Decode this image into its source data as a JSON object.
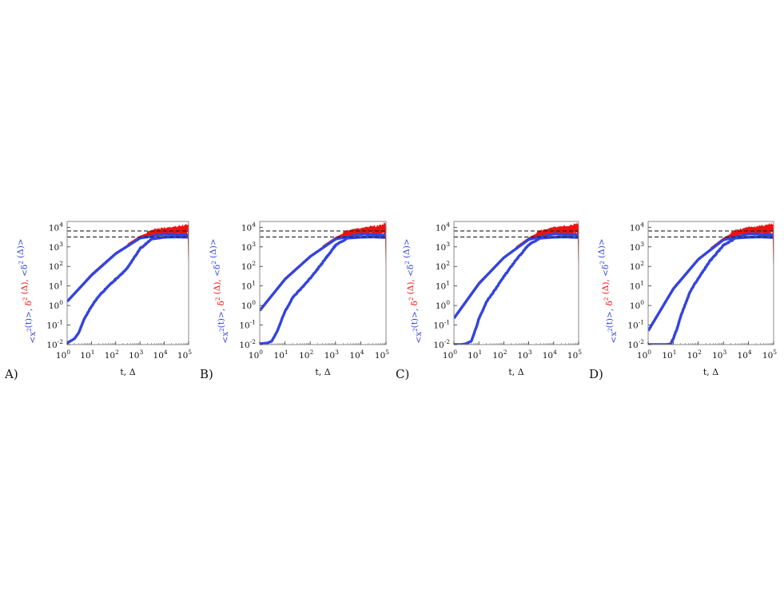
{
  "colors": {
    "ensemble": "#3344dd",
    "time_averaged": "#ee1111",
    "dashed": "#222222",
    "frame": "#888888"
  },
  "figure": {
    "ylabel_parts": [
      {
        "text": "<x",
        "color": "blue"
      },
      {
        "text": "2",
        "color": "blue",
        "sup": true
      },
      {
        "text": "(t)>, ",
        "color": "blue"
      },
      {
        "text": "δ",
        "color": "red"
      },
      {
        "text": "2",
        "color": "red",
        "sup": true
      },
      {
        "text": " (Δ), ",
        "color": "red"
      },
      {
        "text": "<δ",
        "color": "blue"
      },
      {
        "text": "2",
        "color": "blue",
        "sup": true
      },
      {
        "text": " (Δ)>",
        "color": "blue"
      }
    ]
  },
  "chart_data": [
    {
      "panel": "A)",
      "type": "line",
      "xlabel": "t, Δ",
      "x_scale": "log",
      "y_scale": "log",
      "xlim": [
        1,
        100000
      ],
      "ylim": [
        0.01,
        20000
      ],
      "xticks": [
        1,
        10,
        100,
        1000,
        10000,
        100000
      ],
      "yticks": [
        0.01,
        0.1,
        1,
        10,
        100,
        1000,
        10000
      ],
      "hlines": [
        3200,
        6500
      ],
      "series": [
        {
          "role": "time_averaged_single",
          "x": [
            1,
            10,
            100,
            1000,
            3000,
            10000,
            30000,
            60000,
            80000,
            95000,
            100000
          ],
          "y": [
            1.6,
            40,
            500,
            3000,
            5000,
            6500,
            7500,
            8000,
            9000,
            10000,
            4
          ]
        },
        {
          "role": "time_averaged_mean",
          "x": [
            1,
            10,
            100,
            1000,
            10000,
            100000
          ],
          "y": [
            1.6,
            35,
            450,
            2800,
            4500,
            4000
          ]
        },
        {
          "role": "ensemble_msd",
          "x": [
            1,
            2,
            3,
            5,
            10,
            20,
            50,
            100,
            300,
            1000,
            3000,
            10000,
            30000,
            100000
          ],
          "y": [
            0.012,
            0.02,
            0.04,
            0.2,
            0.9,
            3,
            10,
            22,
            80,
            800,
            2500,
            3100,
            3200,
            3100
          ]
        }
      ]
    },
    {
      "panel": "B)",
      "type": "line",
      "xlabel": "t, Δ",
      "x_scale": "log",
      "y_scale": "log",
      "xlim": [
        1,
        100000
      ],
      "ylim": [
        0.01,
        20000
      ],
      "xticks": [
        1,
        10,
        100,
        1000,
        10000,
        100000
      ],
      "yticks": [
        0.01,
        0.1,
        1,
        10,
        100,
        1000,
        10000
      ],
      "hlines": [
        3200,
        6500
      ],
      "series": [
        {
          "role": "time_averaged_single",
          "x": [
            1,
            10,
            100,
            1000,
            3000,
            10000,
            30000,
            60000,
            80000,
            95000,
            100000
          ],
          "y": [
            0.6,
            25,
            350,
            2600,
            5000,
            6500,
            7500,
            8000,
            9500,
            10000,
            2.5
          ]
        },
        {
          "role": "time_averaged_mean",
          "x": [
            1,
            10,
            100,
            1000,
            10000,
            100000
          ],
          "y": [
            0.55,
            22,
            320,
            2500,
            4500,
            4000
          ]
        },
        {
          "role": "ensemble_msd",
          "x": [
            1,
            2,
            3,
            5,
            10,
            20,
            50,
            100,
            300,
            1000,
            3000,
            10000,
            30000,
            100000
          ],
          "y": [
            0.011,
            0.012,
            0.015,
            0.05,
            0.5,
            2.5,
            9,
            25,
            150,
            1200,
            2800,
            3100,
            3200,
            3000
          ]
        }
      ]
    },
    {
      "panel": "C)",
      "type": "line",
      "xlabel": "t, Δ",
      "x_scale": "log",
      "y_scale": "log",
      "xlim": [
        1,
        100000
      ],
      "ylim": [
        0.01,
        20000
      ],
      "xticks": [
        1,
        10,
        100,
        1000,
        10000,
        100000
      ],
      "yticks": [
        0.01,
        0.1,
        1,
        10,
        100,
        1000,
        10000
      ],
      "hlines": [
        3200,
        6500
      ],
      "series": [
        {
          "role": "time_averaged_single",
          "x": [
            1,
            10,
            100,
            1000,
            3000,
            10000,
            30000,
            60000,
            80000,
            95000,
            100000
          ],
          "y": [
            0.25,
            15,
            300,
            2500,
            5000,
            7000,
            8000,
            8500,
            9500,
            10000,
            2.5
          ]
        },
        {
          "role": "time_averaged_mean",
          "x": [
            1,
            10,
            100,
            1000,
            10000,
            100000
          ],
          "y": [
            0.22,
            13,
            280,
            2400,
            4600,
            4100
          ]
        },
        {
          "role": "ensemble_msd",
          "x": [
            1,
            2,
            3,
            5,
            7,
            10,
            20,
            50,
            100,
            300,
            1000,
            3000,
            10000,
            30000,
            100000
          ],
          "y": [
            0.01,
            0.01,
            0.011,
            0.015,
            0.05,
            0.2,
            1.5,
            8,
            30,
            200,
            1300,
            2800,
            3100,
            3200,
            3000
          ]
        }
      ]
    },
    {
      "panel": "D)",
      "type": "line",
      "xlabel": "t, Δ",
      "x_scale": "log",
      "y_scale": "log",
      "xlim": [
        1,
        100000
      ],
      "ylim": [
        0.01,
        20000
      ],
      "xticks": [
        1,
        10,
        100,
        1000,
        10000,
        100000
      ],
      "yticks": [
        0.01,
        0.1,
        1,
        10,
        100,
        1000,
        10000
      ],
      "hlines": [
        3200,
        6500
      ],
      "series": [
        {
          "role": "time_averaged_single",
          "x": [
            1,
            10,
            100,
            1000,
            3000,
            10000,
            30000,
            60000,
            80000,
            95000,
            100000
          ],
          "y": [
            0.05,
            8,
            250,
            2400,
            5000,
            7000,
            8000,
            8500,
            9500,
            10000,
            1.6
          ]
        },
        {
          "role": "time_averaged_mean",
          "x": [
            1,
            10,
            100,
            1000,
            10000,
            100000
          ],
          "y": [
            0.05,
            7,
            230,
            2300,
            4600,
            4100
          ]
        },
        {
          "role": "ensemble_msd",
          "x": [
            1,
            2,
            5,
            8,
            10,
            15,
            20,
            50,
            100,
            300,
            1000,
            3000,
            10000,
            30000,
            100000
          ],
          "y": [
            0.01,
            0.01,
            0.01,
            0.011,
            0.02,
            0.08,
            0.3,
            6,
            25,
            200,
            1200,
            2800,
            3100,
            3200,
            3000
          ]
        }
      ]
    }
  ]
}
